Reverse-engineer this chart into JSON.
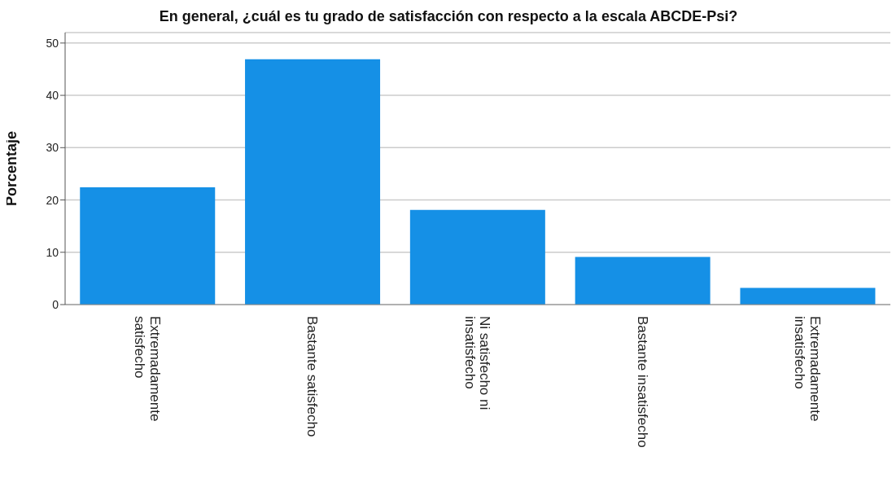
{
  "chart_data": {
    "type": "bar",
    "title": "En general, ¿cuál es tu grado de satisfacción con respecto a la escala ABCDE-Psi?",
    "ylabel": "Porcentaje",
    "categories": [
      "Extremadamente satisfecho",
      "Bastante satisfecho",
      "Ni satisfecho ni insatisfecho",
      "Bastante insatisfecho",
      "Extremadamente insatisfecho"
    ],
    "values": [
      22.4,
      46.9,
      18.1,
      9.1,
      3.2
    ],
    "color": "#1590e6",
    "ylim": [
      0,
      52
    ],
    "yticks": [
      0,
      10,
      20,
      30,
      40,
      50
    ],
    "grid": "y",
    "legend": false
  }
}
